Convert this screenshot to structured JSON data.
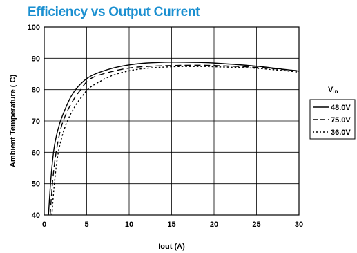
{
  "chart_data": {
    "type": "line",
    "title": "Efficiency vs Output Current",
    "xlabel": "Iout  (A)",
    "ylabel": "Ambient Temperature ( C)",
    "xlim": [
      0,
      30
    ],
    "ylim": [
      40,
      100
    ],
    "xticks": [
      "0",
      "5",
      "10",
      "15",
      "20",
      "25",
      "30"
    ],
    "yticks": [
      "40",
      "50",
      "60",
      "70",
      "80",
      "90",
      "100"
    ],
    "grid": true,
    "legend": {
      "title_main": "V",
      "title_sub": "in",
      "placement": "right"
    },
    "series": [
      {
        "name": "48.0V",
        "style": "solid",
        "x": [
          0.5,
          0.8,
          1.2,
          1.8,
          2.5,
          3.2,
          4.0,
          5.0,
          6.0,
          8.0,
          10.0,
          12.0,
          15.0,
          18.0,
          20.0,
          25.0,
          30.0
        ],
        "y": [
          40.0,
          52.0,
          62.0,
          69.0,
          74.0,
          78.0,
          81.0,
          83.5,
          85.0,
          86.8,
          87.9,
          88.5,
          88.8,
          88.7,
          88.5,
          87.5,
          85.9
        ]
      },
      {
        "name": "75.0V",
        "style": "dashed",
        "x": [
          0.7,
          1.0,
          1.4,
          2.0,
          2.7,
          3.5,
          4.3,
          5.0,
          6.0,
          8.0,
          10.0,
          12.0,
          15.0,
          18.0,
          20.0,
          25.0,
          30.0
        ],
        "y": [
          40.0,
          51.0,
          60.0,
          68.0,
          73.0,
          77.0,
          80.0,
          82.5,
          84.2,
          85.8,
          86.9,
          87.4,
          87.7,
          87.8,
          87.7,
          87.1,
          86.0
        ]
      },
      {
        "name": "36.0V",
        "style": "dotted",
        "x": [
          0.9,
          1.2,
          1.6,
          2.2,
          2.9,
          3.7,
          4.5,
          5.3,
          6.5,
          8.0,
          10.0,
          12.0,
          15.0,
          18.0,
          20.0,
          25.0,
          30.0
        ],
        "y": [
          40.0,
          50.0,
          59.0,
          66.0,
          71.0,
          75.0,
          78.0,
          80.5,
          82.5,
          84.5,
          86.0,
          86.8,
          87.3,
          87.4,
          87.3,
          86.8,
          85.6
        ]
      }
    ]
  }
}
